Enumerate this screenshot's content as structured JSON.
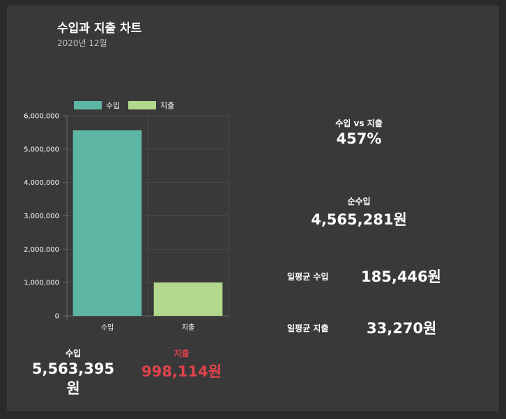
{
  "header": {
    "title": "수입과 지출 차트",
    "subtitle": "2020년 12월"
  },
  "chart_data": {
    "type": "bar",
    "categories": [
      "수입",
      "지출"
    ],
    "values": [
      5563395,
      998114
    ],
    "colors": [
      "#5db6a3",
      "#b3d78b"
    ],
    "legend": [
      "수입",
      "지출"
    ],
    "legend_position": "top",
    "ylim": [
      0,
      6000000
    ],
    "yticks": [
      "0",
      "1,000,000",
      "2,000,000",
      "3,000,000",
      "4,000,000",
      "5,000,000",
      "6,000,000"
    ],
    "grid": true
  },
  "totals": {
    "income_label": "수입",
    "income_value": "5,563,395원",
    "expense_label": "지출",
    "expense_value": "998,114원"
  },
  "stats": {
    "ratio_label": "수입 vs 지출",
    "ratio_value": "457%",
    "net_label": "순수입",
    "net_value": "4,565,281원",
    "daily_income_label": "일평균 수입",
    "daily_income_value": "185,446원",
    "daily_expense_label": "일평균 지출",
    "daily_expense_value": "33,270원"
  },
  "colors": {
    "background": "#2a2a2a",
    "panel": "#393939",
    "expense_text": "#e0424c"
  }
}
